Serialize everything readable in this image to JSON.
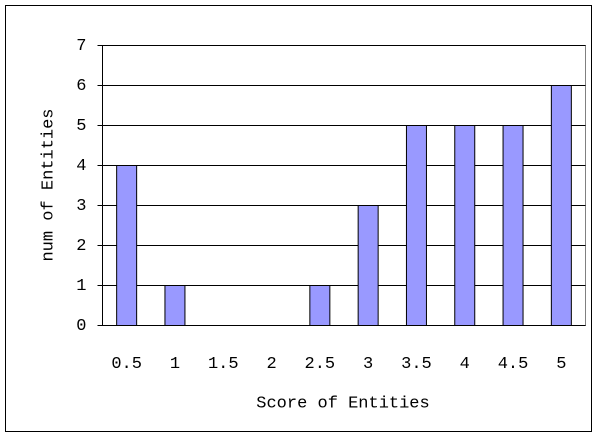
{
  "chart_data": {
    "type": "bar",
    "categories": [
      "0.5",
      "1",
      "1.5",
      "2",
      "2.5",
      "3",
      "3.5",
      "4",
      "4.5",
      "5"
    ],
    "values": [
      4,
      1,
      0,
      0,
      1,
      3,
      5,
      5,
      5,
      6
    ],
    "color": "#9999ff",
    "xlabel": "Score of Entities",
    "ylabel": "num of Entities",
    "ylim": [
      0,
      7
    ],
    "yticks": [
      0,
      1,
      2,
      3,
      4,
      5,
      6,
      7
    ],
    "grid": true
  }
}
